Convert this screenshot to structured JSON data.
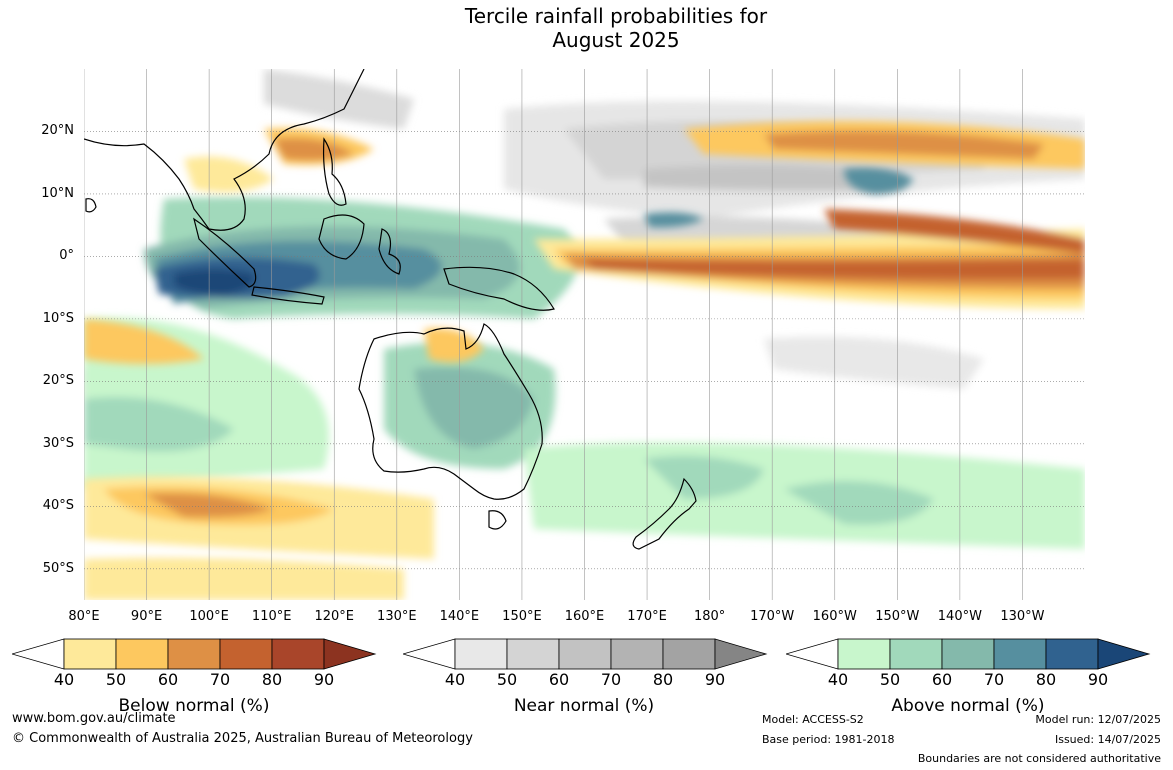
{
  "title": {
    "line1": "Tercile rainfall probabilities for",
    "line2": "August 2025"
  },
  "map": {
    "lat_labels": [
      "20°N",
      "10°N",
      "0°",
      "10°S",
      "20°S",
      "30°S",
      "40°S",
      "50°S"
    ],
    "lon_labels": [
      "80°E",
      "90°E",
      "100°E",
      "110°E",
      "120°E",
      "130°E",
      "140°E",
      "150°E",
      "160°E",
      "170°E",
      "180°",
      "170°W",
      "160°W",
      "150°W",
      "140°W",
      "130°W"
    ],
    "extent": {
      "lon_min": 80,
      "lon_max": 240,
      "lat_min": -55,
      "lat_max": 30
    },
    "regions_described": {
      "below_normal": [
        "equatorial central and eastern Pacific",
        "northern subtropical Pacific",
        "southern Indian Ocean near 40S"
      ],
      "near_normal": [
        "western and central Pacific north of the equator"
      ],
      "above_normal": [
        "Maritime Continent",
        "eastern Indian Ocean",
        "northern and eastern Australia",
        "Southern Ocean"
      ]
    }
  },
  "colorbars": [
    {
      "name": "below",
      "title": "Below normal (%)",
      "ticks": [
        "40",
        "50",
        "60",
        "70",
        "80",
        "90"
      ],
      "colors": [
        "#ffffff",
        "#fee99a",
        "#fdc85f",
        "#de9045",
        "#c4622f",
        "#a9452a",
        "#8c3320"
      ]
    },
    {
      "name": "near",
      "title": "Near normal (%)",
      "ticks": [
        "40",
        "50",
        "60",
        "70",
        "80",
        "90"
      ],
      "colors": [
        "#ffffff",
        "#e8e8e8",
        "#d4d4d4",
        "#c2c2c2",
        "#b3b3b3",
        "#a3a3a3",
        "#858585"
      ]
    },
    {
      "name": "above",
      "title": "Above normal (%)",
      "ticks": [
        "40",
        "50",
        "60",
        "70",
        "80",
        "90"
      ],
      "colors": [
        "#ffffff",
        "#c8f6cc",
        "#a1d9bb",
        "#84b9ab",
        "#568f9f",
        "#30628f",
        "#1a4677"
      ]
    }
  ],
  "footer": {
    "website": "www.bom.gov.au/climate",
    "copyright": "© Commonwealth of Australia 2025, Australian Bureau of Meteorology",
    "model": "Model: ACCESS-S2",
    "base_period": "Base period: 1981-2018",
    "model_run": "Model run: 12/07/2025",
    "issued": "Issued: 14/07/2025",
    "disclaimer": "Boundaries are not considered authoritative"
  }
}
